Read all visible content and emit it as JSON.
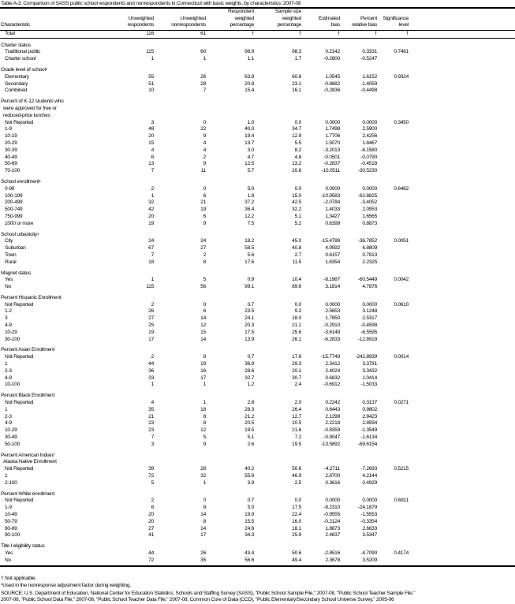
{
  "title": "Table A-3. Comparison of SASS public school respondents and nonrespondents in Connecticut with basic weights, by characteristics: 2007-08",
  "columns": [
    "Characteristic",
    "Unweighted respondents",
    "Unweighted nonrespondents",
    "Respondent weighted percentage",
    "Sample size weighted percentage",
    "Estimated bias",
    "Percent relative bias",
    "Significance level"
  ],
  "total": {
    "label": "Total",
    "values": [
      "116",
      "61",
      "†",
      "†",
      "†",
      "†",
      "†"
    ]
  },
  "groups": [
    {
      "label": [
        "Charter status"
      ],
      "rows": [
        [
          "Traditional public",
          "115",
          "60",
          "98.9",
          "98.3",
          "0.2142",
          "0.3331",
          "0.7481"
        ],
        [
          "Charter school",
          "1",
          "1",
          "1.1",
          "1.7",
          "-0.2800",
          "-0.5247",
          ""
        ]
      ]
    },
    {
      "label": [
        "Grade level of school"
      ],
      "sup": "1",
      "rows": [
        [
          "Elementary",
          "55",
          "26",
          "63.8",
          "60.8",
          "1.0545",
          "1.6152",
          "0.9324"
        ],
        [
          "Secondary",
          "51",
          "28",
          "20.8",
          "23.1",
          "-0.8682",
          "-1.4059",
          ""
        ],
        [
          "Combined",
          "10",
          "7",
          "15.4",
          "16.1",
          "-0.2836",
          "-0.4498",
          ""
        ]
      ]
    },
    {
      "label": [
        "Percent of K-12 students who",
        "were approved for free or",
        "reduced-price lunches"
      ],
      "rows": [
        [
          "Not Reported",
          "3",
          "0",
          "1.0",
          "0.0",
          "0.0000",
          "0.0000",
          "0.3450"
        ],
        [
          "1-9",
          "48",
          "22",
          "40.0",
          "34.7",
          "1.7498",
          "2.5900",
          ""
        ],
        [
          "10-19",
          "20",
          "9",
          "19.4",
          "12.9",
          "1.7706",
          "2.4256",
          ""
        ],
        [
          "20-29",
          "15",
          "4",
          "13.7",
          "5.5",
          "1.5070",
          "1.8467",
          ""
        ],
        [
          "30-39",
          "4",
          "4",
          "3.0",
          "8.2",
          "-3.2013",
          "-8.1580",
          ""
        ],
        [
          "40-49",
          "6",
          "2",
          "4.7",
          "4.8",
          "-0.0501",
          "-0.0790",
          ""
        ],
        [
          "50-69",
          "13",
          "9",
          "12.5",
          "13.2",
          "-0.2837",
          "-0.4518",
          ""
        ],
        [
          "70-100",
          "7",
          "11",
          "5.7",
          "20.6",
          "-10.0511",
          "-30.5230",
          ""
        ]
      ]
    },
    {
      "label": [
        "School enrollment"
      ],
      "sup": "1",
      "rows": [
        [
          "0-99",
          "2",
          "0",
          "5.0",
          "0.0",
          "0.0000",
          "0.0000",
          "0.6482"
        ],
        [
          "100-199",
          "1",
          "6",
          "1.8",
          "15.0",
          "-10.9583",
          "-62.8825",
          ""
        ],
        [
          "200-499",
          "32",
          "21",
          "37.2",
          "42.5",
          "-2.0784",
          "-3.4052",
          ""
        ],
        [
          "500-749",
          "42",
          "19",
          "36.4",
          "32.2",
          "1.4033",
          "2.0953",
          ""
        ],
        [
          "750-999",
          "20",
          "6",
          "12.2",
          "5.1",
          "1.3427",
          "1.6565",
          ""
        ],
        [
          "1000 or more",
          "19",
          "9",
          "7.5",
          "5.2",
          "0.6399",
          "0.8873",
          ""
        ]
      ]
    },
    {
      "label": [
        "School urbanicity"
      ],
      "sup": "1",
      "rows": [
        [
          "City",
          "24",
          "24",
          "18.2",
          "45.0",
          "-15.4788",
          "-36.7852",
          "0.0051"
        ],
        [
          "Suburban",
          "67",
          "27",
          "58.5",
          "40.8",
          "4.9592",
          "6.8809",
          ""
        ],
        [
          "Town",
          "7",
          "2",
          "5.6",
          "2.7",
          "0.6157",
          "0.7813",
          ""
        ],
        [
          "Rural",
          "18",
          "8",
          "17.6",
          "11.5",
          "1.6354",
          "2.2325",
          ""
        ]
      ]
    },
    {
      "label": [
        "Magnet status"
      ],
      "rows": [
        [
          "Yes",
          "1",
          "5",
          "0.9",
          "10.4",
          "-8.1987",
          "-60.5449",
          "0.0042"
        ],
        [
          "No",
          "115",
          "56",
          "99.1",
          "89.6",
          "3.1814",
          "4.7876",
          ""
        ]
      ]
    },
    {
      "label": [
        "Percent Hispanic Enrollment"
      ],
      "rows": [
        [
          "Not Reported",
          "2",
          "0",
          "0.7",
          "0.0",
          "0.0000",
          "0.0000",
          "0.0610"
        ],
        [
          "1-2",
          "26",
          "6",
          "23.5",
          "9.2",
          "2.5653",
          "3.1248",
          ""
        ],
        [
          "3",
          "27",
          "14",
          "24.1",
          "18.0",
          "1.7850",
          "2.5317",
          ""
        ],
        [
          "4-9",
          "25",
          "12",
          "20.3",
          "21.1",
          "-0.2910",
          "-0.4598",
          ""
        ],
        [
          "10-29",
          "19",
          "15",
          "17.5",
          "25.6",
          "-3.6148",
          "-6.5595",
          ""
        ],
        [
          "30-100",
          "17",
          "14",
          "13.9",
          "26.1",
          "-6.2833",
          "-12.8918",
          ""
        ]
      ]
    },
    {
      "label": [
        "Percent Asian Enrollment"
      ],
      "rows": [
        [
          "Not Reported",
          "2",
          "8",
          "0.7",
          "17.6",
          "-15.7749",
          "-242.8939",
          "0.0014"
        ],
        [
          "1",
          "44",
          "19",
          "36.9",
          "29.3",
          "2.3412",
          "3.3781",
          ""
        ],
        [
          "2-3",
          "36",
          "16",
          "28.6",
          "20.1",
          "2.4024",
          "3.3432",
          ""
        ],
        [
          "4-9",
          "33",
          "17",
          "32.7",
          "30.7",
          "0.6832",
          "1.0414",
          ""
        ],
        [
          "10-100",
          "1",
          "1",
          "1.2",
          "2.4",
          "-0.6912",
          "-1.5033",
          ""
        ]
      ]
    },
    {
      "label": [
        "Percent Black Enrollment"
      ],
      "rows": [
        [
          "Not Reported",
          "4",
          "1",
          "2.8",
          "2.0",
          "0.2242",
          "0.3137",
          "0.0271"
        ],
        [
          "1",
          "35",
          "18",
          "28.3",
          "26.4",
          "0.6443",
          "0.9802",
          ""
        ],
        [
          "2-3",
          "21",
          "8",
          "21.2",
          "12.7",
          "2.1298",
          "2.8423",
          ""
        ],
        [
          "4-9",
          "23",
          "8",
          "20.5",
          "10.5",
          "2.2218",
          "2.8594",
          ""
        ],
        [
          "10-29",
          "23",
          "12",
          "19.5",
          "21.6",
          "-0.8359",
          "-1.3549",
          ""
        ],
        [
          "30-49",
          "7",
          "5",
          "5.1",
          "7.2",
          "-0.9047",
          "-1.6134",
          ""
        ],
        [
          "50-100",
          "3",
          "9",
          "2.6",
          "19.5",
          "-13.5892",
          "-69.6154",
          ""
        ]
      ]
    },
    {
      "label": [
        "Percent American Indian/",
        "Alaska Native Enrollment"
      ],
      "rows": [
        [
          "Not Reported",
          "39",
          "28",
          "40.2",
          "50.6",
          "-4.2711",
          "-7.2693",
          "0.5215"
        ],
        [
          "1",
          "72",
          "32",
          "55.9",
          "46.9",
          "2.8700",
          "4.2144",
          ""
        ],
        [
          "2-100",
          "5",
          "1",
          "3.9",
          "2.5",
          "0.3616",
          "0.4929",
          ""
        ]
      ]
    },
    {
      "label": [
        "Percent White enrollment"
      ],
      "rows": [
        [
          "Not Reported",
          "2",
          "0",
          "0.7",
          "0.0",
          "0.0000",
          "0.0000",
          "0.6811"
        ],
        [
          "1-9",
          "6",
          "8",
          "5.0",
          "17.5",
          "-8.2310",
          "-24.1879",
          ""
        ],
        [
          "10-49",
          "20",
          "14",
          "19.9",
          "22.4",
          "-0.9555",
          "-1.5553",
          ""
        ],
        [
          "50-79",
          "20",
          "8",
          "15.5",
          "16.0",
          "-0.2124",
          "-0.3354",
          ""
        ],
        [
          "80-89",
          "27",
          "14",
          "24.6",
          "18.1",
          "1.8873",
          "2.6633",
          ""
        ],
        [
          "90-100",
          "41",
          "17",
          "34.3",
          "25.9",
          "2.4837",
          "3.5347",
          ""
        ]
      ]
    },
    {
      "label": [
        "Title I eligibility status"
      ],
      "rows": [
        [
          "Yes",
          "44",
          "26",
          "43.4",
          "50.6",
          "-2.8516",
          "-4.7090",
          "0.4174"
        ],
        [
          "No",
          "72",
          "35",
          "56.6",
          "49.4",
          "2.3678",
          "3.5209",
          ""
        ]
      ]
    }
  ],
  "footnotes": {
    "dagger": "† Not applicable.",
    "note1_mark": "1",
    "note1": "Used in the nonresponse adjustment factor during weighting.",
    "source_line1": "SOURCE: U.S. Department of Education, National Center for Education Statistics, Schools and Staffing Survey (SASS), \"Public School Sample File,\" 2007-08, \"Public School Teacher Sample File,\"",
    "source_line2": "2007-08, \"Public School Data File,\" 2007-08, \"Public School Teacher Data File,\" 2007-08, Common Core of Data (CCD), \"Public Elementary/Secondary School Universe Survey,\" 2005-06"
  }
}
